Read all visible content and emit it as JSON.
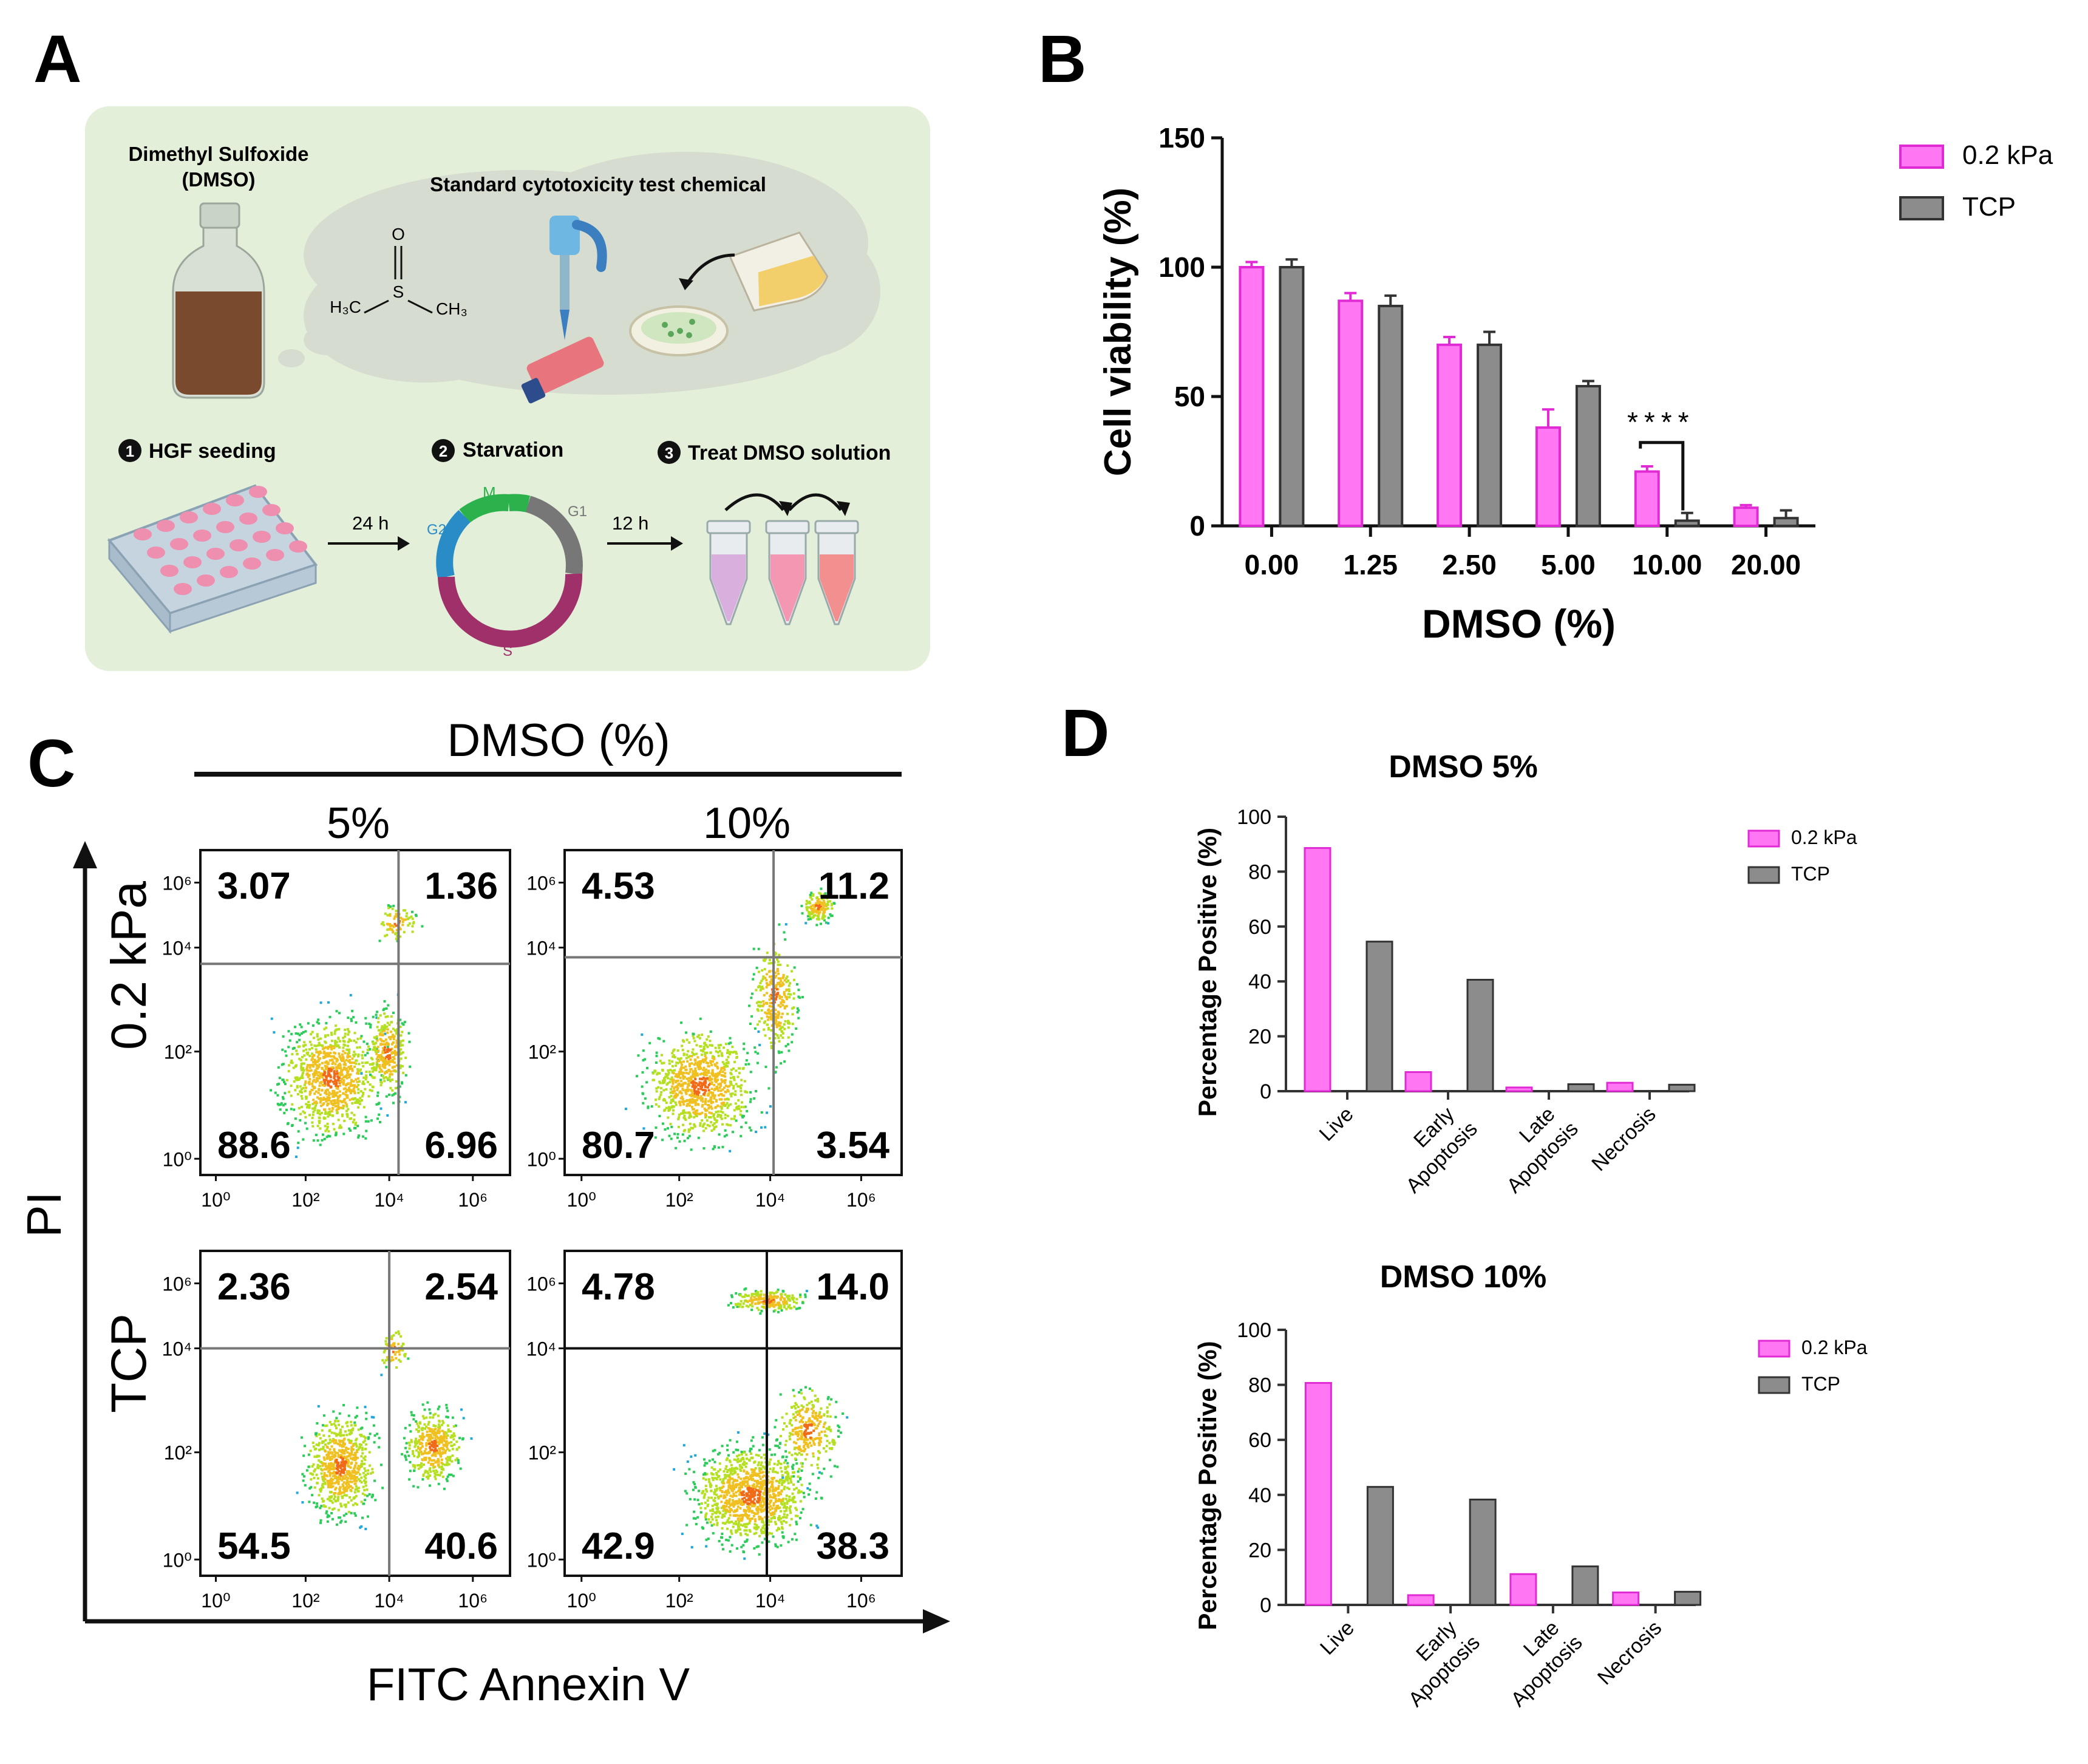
{
  "panel_labels": {
    "a": "A",
    "b": "B",
    "c": "C",
    "d": "D"
  },
  "schematic": {
    "chemical_name": "Dimethyl Sulfoxide",
    "chemical_abbr": "(DMSO)",
    "cloud_title": "Standard cytotoxicity test chemical",
    "molecule": {
      "s": "S",
      "o": "O",
      "left": "H₃C",
      "right": "CH₃"
    },
    "steps": [
      {
        "num": "1",
        "label": "HGF seeding"
      },
      {
        "num": "2",
        "label": "Starvation"
      },
      {
        "num": "3",
        "label": "Treat DMSO solution"
      }
    ],
    "arrow1_label": "24 h",
    "arrow2_label": "12 h",
    "cycle_phases": {
      "m": "M",
      "g1": "G1",
      "g2": "G2",
      "s": "S"
    },
    "colors": {
      "panel_bg": "#e3efd9",
      "bottle": "#7a4a2f",
      "phase_m": "#2bb24c",
      "phase_g2": "#2a8cc7",
      "phase_g1": "#777777",
      "phase_s": "#a0306a"
    }
  },
  "chart_data": [
    {
      "type": "bar",
      "id": "B",
      "xlabel": "DMSO (%)",
      "ylabel": "Cell viability (%)",
      "ylim": [
        0,
        150
      ],
      "yticks": [
        "0",
        "50",
        "100",
        "150"
      ],
      "categories": [
        "0.00",
        "1.25",
        "2.50",
        "5.00",
        "10.00",
        "20.00"
      ],
      "series": [
        {
          "name": "0.2 kPa",
          "color": "#ff77f2",
          "values": [
            100,
            87,
            70,
            38,
            21,
            7
          ],
          "errors": [
            2,
            3,
            3,
            7,
            2,
            1
          ]
        },
        {
          "name": "TCP",
          "color": "#8c8c8c",
          "values": [
            100,
            85,
            70,
            54,
            2,
            3
          ],
          "errors": [
            3,
            4,
            5,
            2,
            3,
            3
          ]
        }
      ],
      "significance": {
        "category": "10.00",
        "label": "****"
      },
      "legend_position": "top-right"
    },
    {
      "type": "scatter",
      "id": "C",
      "title": "DMSO (%)",
      "columns": [
        "5%",
        "10%"
      ],
      "rows": [
        "0.2 kPa",
        "TCP"
      ],
      "xlabel": "FITC Annexin V",
      "ylabel": "PI",
      "xticks": [
        "10⁰",
        "10²",
        "10⁴",
        "10⁶"
      ],
      "yticks": [
        "10⁰",
        "10²",
        "10⁴",
        "10⁶"
      ],
      "quadrants": [
        {
          "row": "0.2 kPa",
          "col": "5%",
          "ul": "3.07",
          "ur": "1.36",
          "ll": "88.6",
          "lr": "6.96"
        },
        {
          "row": "0.2 kPa",
          "col": "10%",
          "ul": "4.53",
          "ur": "11.2",
          "ll": "80.7",
          "lr": "3.54"
        },
        {
          "row": "TCP",
          "col": "5%",
          "ul": "2.36",
          "ur": "2.54",
          "ll": "54.5",
          "lr": "40.6"
        },
        {
          "row": "TCP",
          "col": "10%",
          "ul": "4.78",
          "ur": "14.0",
          "ll": "42.9",
          "lr": "38.3"
        }
      ]
    },
    {
      "type": "bar",
      "id": "D1",
      "title": "DMSO 5%",
      "ylabel": "Percentage Positive (%)",
      "ylim": [
        0,
        100
      ],
      "yticks": [
        "0",
        "20",
        "40",
        "60",
        "80",
        "100"
      ],
      "categories": [
        [
          "Live"
        ],
        [
          "Early",
          "Apoptosis"
        ],
        [
          "Late",
          "Apoptosis"
        ],
        [
          "Necrosis"
        ]
      ],
      "series": [
        {
          "name": "0.2 kPa",
          "color": "#ff77f2",
          "values": [
            88.6,
            6.96,
            1.36,
            3.07
          ]
        },
        {
          "name": "TCP",
          "color": "#8c8c8c",
          "values": [
            54.5,
            40.6,
            2.54,
            2.36
          ]
        }
      ],
      "legend_position": "top-right"
    },
    {
      "type": "bar",
      "id": "D2",
      "title": "DMSO 10%",
      "ylabel": "Percentage Positive (%)",
      "ylim": [
        0,
        100
      ],
      "yticks": [
        "0",
        "20",
        "40",
        "60",
        "80",
        "100"
      ],
      "categories": [
        [
          "Live"
        ],
        [
          "Early",
          "Apoptosis"
        ],
        [
          "Late",
          "Apoptosis"
        ],
        [
          "Necrosis"
        ]
      ],
      "series": [
        {
          "name": "0.2 kPa",
          "color": "#ff77f2",
          "values": [
            80.7,
            3.54,
            11.2,
            4.53
          ]
        },
        {
          "name": "TCP",
          "color": "#8c8c8c",
          "values": [
            42.9,
            38.3,
            14.0,
            4.78
          ]
        }
      ],
      "legend_position": "top-right"
    }
  ]
}
